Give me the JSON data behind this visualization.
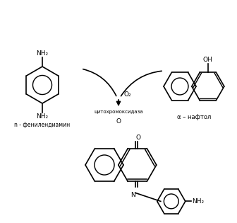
{
  "bg_color": "#ffffff",
  "line_color": "#000000",
  "figsize": [
    3.36,
    3.15
  ],
  "dpi": 100,
  "label_phenylenediamine": "n - фенилендиамин",
  "label_alpha_naphthol": "α – нафтол",
  "label_O2": "O₂",
  "label_enzyme": "цитохромоксидаза",
  "label_O": "O",
  "label_NH2": "NH₂",
  "label_OH": "OH",
  "label_N": "N",
  "font_size_small": 5.5,
  "font_size_chem": 6.5,
  "lw": 1.2
}
